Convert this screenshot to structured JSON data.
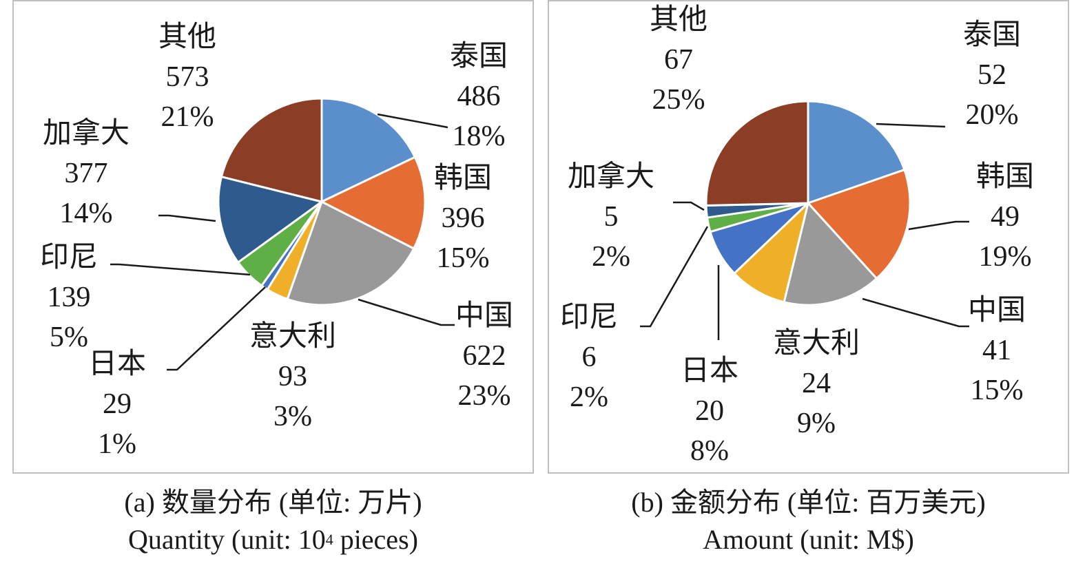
{
  "chart_data": [
    {
      "type": "pie",
      "caption_cn": "(a) 数量分布 (单位: 万片)",
      "caption_en_prefix": "Quantity (unit: 10",
      "caption_en_sup": "4",
      "caption_en_suffix": " pieces)",
      "slices": [
        {
          "name": "泰国",
          "value": 486,
          "percent": "18%",
          "color": "#5b8fcc"
        },
        {
          "name": "韩国",
          "value": 396,
          "percent": "15%",
          "color": "#e56c32"
        },
        {
          "name": "中国",
          "value": 622,
          "percent": "23%",
          "color": "#999999"
        },
        {
          "name": "意大利",
          "value": 93,
          "percent": "3%",
          "color": "#f0af28"
        },
        {
          "name": "日本",
          "value": 29,
          "percent": "1%",
          "color": "#4472c4"
        },
        {
          "name": "印尼",
          "value": 139,
          "percent": "5%",
          "color": "#5fae46"
        },
        {
          "name": "加拿大",
          "value": 377,
          "percent": "14%",
          "color": "#2f5a8e"
        },
        {
          "name": "其他",
          "value": 573,
          "percent": "21%",
          "color": "#8b3e25"
        }
      ]
    },
    {
      "type": "pie",
      "caption_cn": "(b) 金额分布 (单位: 百万美元)",
      "caption_en": "Amount (unit: M$)",
      "slices": [
        {
          "name": "泰国",
          "value": 52,
          "percent": "20%",
          "color": "#5b8fcc"
        },
        {
          "name": "韩国",
          "value": 49,
          "percent": "19%",
          "color": "#e56c32"
        },
        {
          "name": "中国",
          "value": 41,
          "percent": "15%",
          "color": "#999999"
        },
        {
          "name": "意大利",
          "value": 24,
          "percent": "9%",
          "color": "#f0af28"
        },
        {
          "name": "日本",
          "value": 20,
          "percent": "8%",
          "color": "#4472c4"
        },
        {
          "name": "印尼",
          "value": 6,
          "percent": "2%",
          "color": "#5fae46"
        },
        {
          "name": "加拿大",
          "value": 5,
          "percent": "2%",
          "color": "#2f5a8e"
        },
        {
          "name": "其他",
          "value": 67,
          "percent": "25%",
          "color": "#8b3e25"
        }
      ]
    }
  ]
}
